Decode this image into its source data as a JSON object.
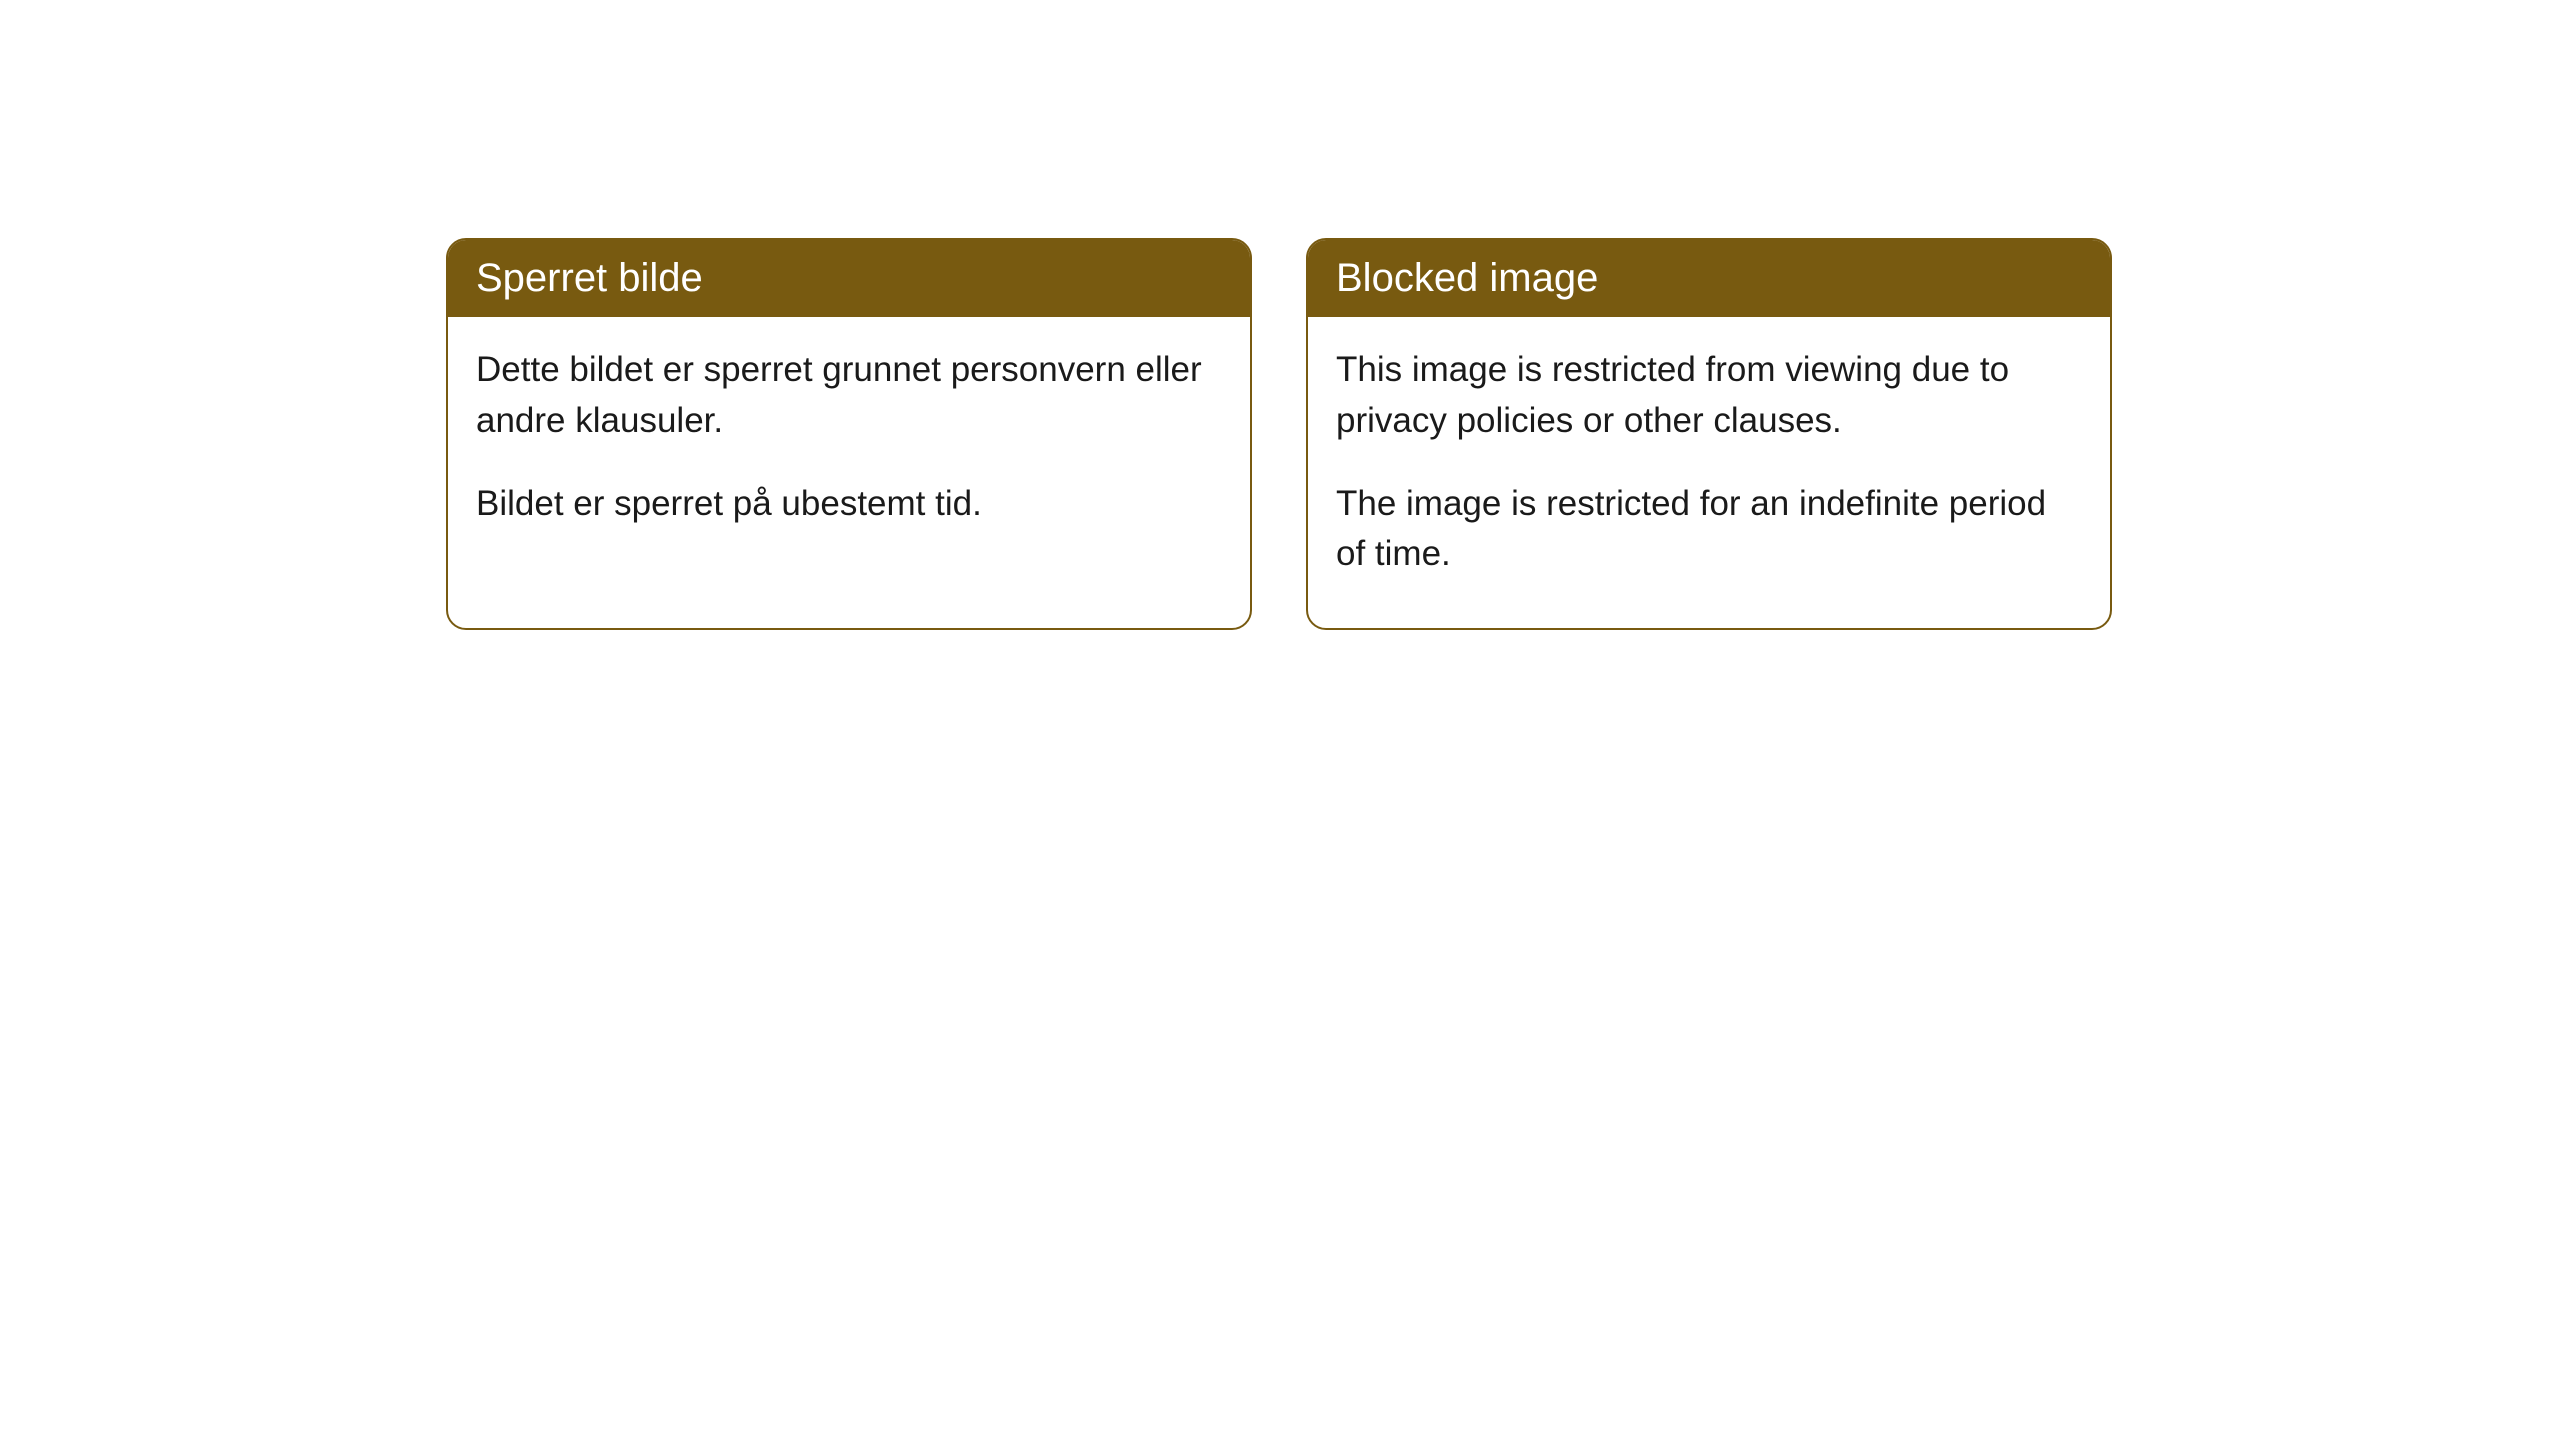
{
  "cards": [
    {
      "title": "Sperret bilde",
      "paragraph1": "Dette bildet er sperret grunnet personvern eller andre klausuler.",
      "paragraph2": "Bildet er sperret på ubestemt tid."
    },
    {
      "title": "Blocked image",
      "paragraph1": "This image is restricted from viewing due to privacy policies or other clauses.",
      "paragraph2": "The image is restricted for an indefinite period of time."
    }
  ],
  "styling": {
    "header_background": "#785a10",
    "header_text_color": "#ffffff",
    "border_color": "#785a10",
    "body_text_color": "#1a1a1a",
    "card_background": "#ffffff",
    "page_background": "#ffffff",
    "border_radius": 20,
    "header_fontsize": 40,
    "body_fontsize": 35
  }
}
